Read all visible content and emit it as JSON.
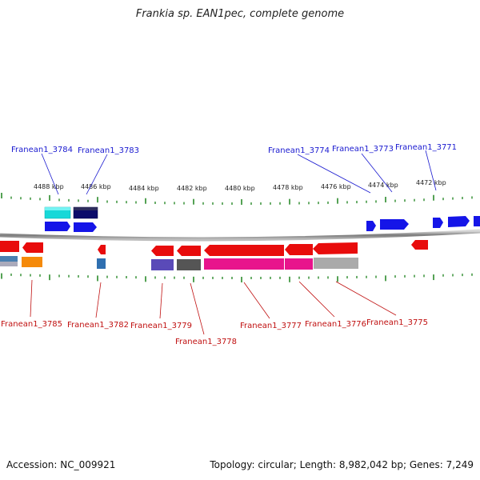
{
  "title": "Frankia sp. EAN1pec, complete genome",
  "footer": {
    "accession": "Accession: NC_009921",
    "stats": "Topology: circular; Length: 8,982,042 bp; Genes: 7,249"
  },
  "colors": {
    "forward_label": "#1a1ad0",
    "reverse_label": "#c01010",
    "tick": "#2a8a2a",
    "backbone": "#888888"
  },
  "scale_labels": [
    "4488 kbp",
    "4486 kbp",
    "4484 kbp",
    "4482 kbp",
    "4480 kbp",
    "4478 kbp",
    "4476 kbp",
    "4474 kbp",
    "4472 kbp"
  ],
  "forward_gene_labels": [
    "Franean1_3784",
    "Franean1_3783",
    "Franean1_3774",
    "Franean1_3773",
    "Franean1_3771"
  ],
  "reverse_gene_labels": [
    "Franean1_3785",
    "Franean1_3782",
    "Franean1_3779",
    "Franean1_3778",
    "Franean1_3777",
    "Franean1_3776",
    "Franean1_3775"
  ]
}
